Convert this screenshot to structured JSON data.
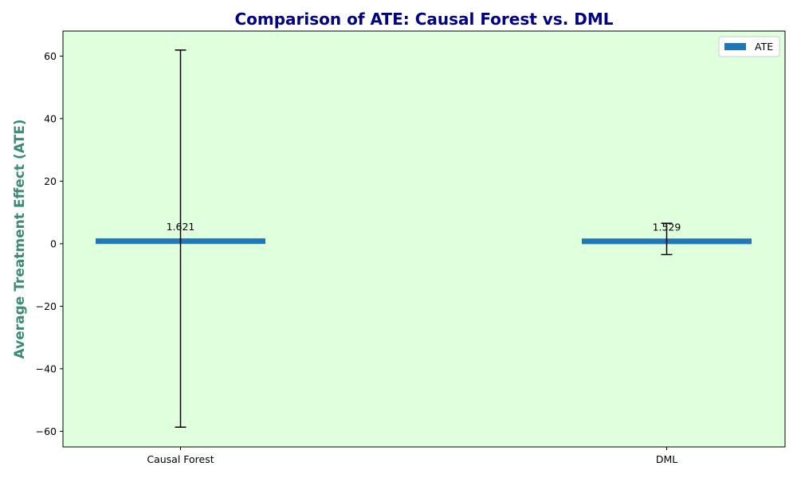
{
  "chart_data": {
    "type": "bar",
    "title": "Comparison of ATE: Causal Forest vs. DML",
    "xlabel": "",
    "ylabel": "Average Treatment Effect (ATE)",
    "categories": [
      "Causal Forest",
      "DML"
    ],
    "series": [
      {
        "name": "ATE",
        "values": [
          1.621,
          1.529
        ],
        "data_labels": [
          "1.621",
          "1.529"
        ],
        "error": [
          60.3,
          5.0
        ]
      }
    ],
    "ylim": [
      -65,
      68
    ],
    "yticks": [
      -60,
      -40,
      -20,
      0,
      20,
      40,
      60
    ],
    "ytick_labels": [
      "−60",
      "−40",
      "−20",
      "0",
      "20",
      "40",
      "60"
    ],
    "grid": false,
    "legend": "top-right",
    "colors": {
      "bar": "#1f77b4",
      "plot_background": "#e0ffdd",
      "error_bar": "#000000",
      "title": "#000080",
      "ylabel": "#3d8b73"
    }
  }
}
